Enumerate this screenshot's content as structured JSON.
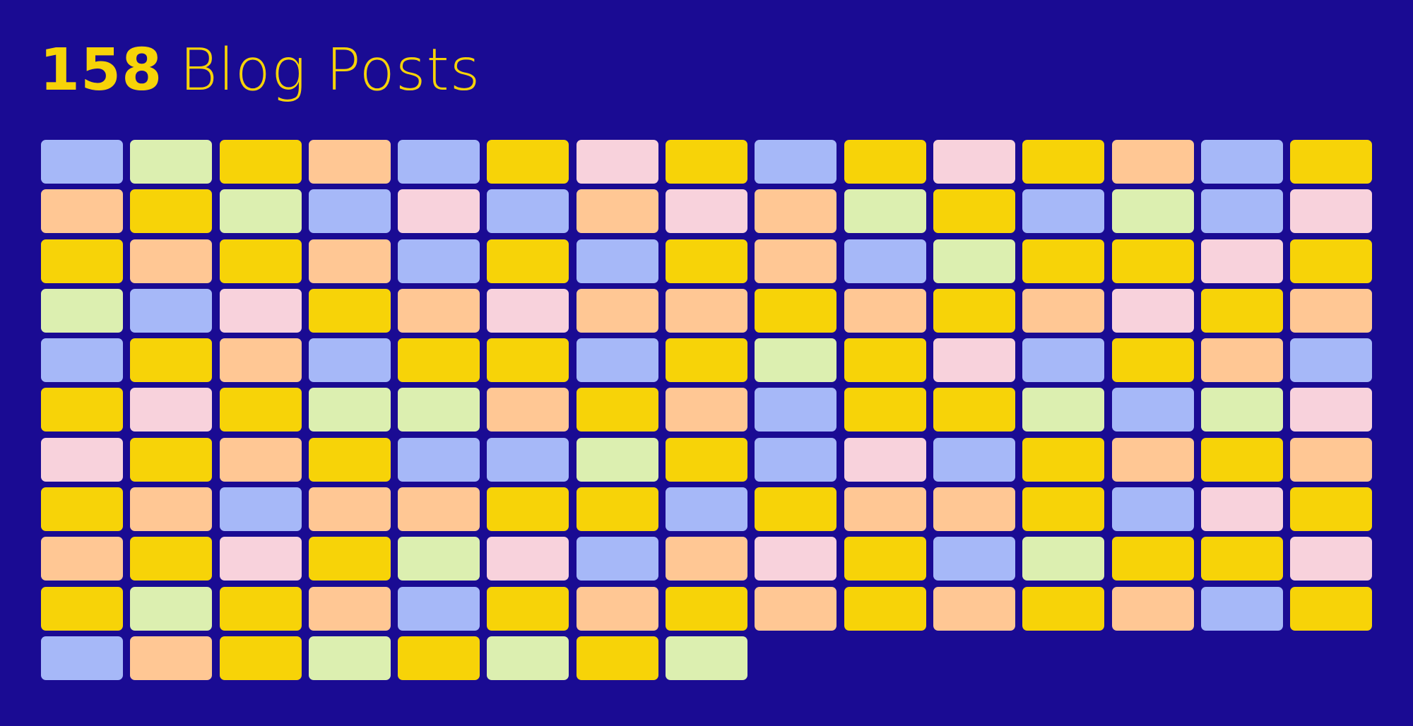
{
  "header": {
    "count": 158,
    "label": "Blog Posts"
  },
  "palette": {
    "blue": "#a6b8f8",
    "green": "#dcefb0",
    "yellow": "#f7d308",
    "orange": "#ffc794",
    "pink": "#f8d2dc"
  },
  "posts": [
    "blue",
    "green",
    "yellow",
    "orange",
    "blue",
    "yellow",
    "pink",
    "yellow",
    "blue",
    "yellow",
    "pink",
    "yellow",
    "orange",
    "blue",
    "yellow",
    "orange",
    "yellow",
    "green",
    "blue",
    "pink",
    "blue",
    "orange",
    "pink",
    "orange",
    "green",
    "yellow",
    "blue",
    "green",
    "blue",
    "pink",
    "yellow",
    "orange",
    "yellow",
    "orange",
    "blue",
    "yellow",
    "blue",
    "yellow",
    "orange",
    "blue",
    "green",
    "yellow",
    "yellow",
    "pink",
    "yellow",
    "green",
    "blue",
    "pink",
    "yellow",
    "orange",
    "pink",
    "orange",
    "orange",
    "yellow",
    "orange",
    "yellow",
    "orange",
    "pink",
    "yellow",
    "orange",
    "blue",
    "yellow",
    "orange",
    "blue",
    "yellow",
    "yellow",
    "blue",
    "yellow",
    "green",
    "yellow",
    "pink",
    "blue",
    "yellow",
    "orange",
    "blue",
    "yellow",
    "pink",
    "yellow",
    "green",
    "green",
    "orange",
    "yellow",
    "orange",
    "blue",
    "yellow",
    "yellow",
    "green",
    "blue",
    "green",
    "pink",
    "pink",
    "yellow",
    "orange",
    "yellow",
    "blue",
    "blue",
    "green",
    "yellow",
    "blue",
    "pink",
    "blue",
    "yellow",
    "orange",
    "yellow",
    "orange",
    "yellow",
    "orange",
    "blue",
    "orange",
    "orange",
    "yellow",
    "yellow",
    "blue",
    "yellow",
    "orange",
    "orange",
    "yellow",
    "blue",
    "pink",
    "yellow",
    "orange",
    "yellow",
    "pink",
    "yellow",
    "green",
    "pink",
    "blue",
    "orange",
    "pink",
    "yellow",
    "blue",
    "green",
    "yellow",
    "yellow",
    "pink",
    "yellow",
    "green",
    "yellow",
    "orange",
    "blue",
    "yellow",
    "orange",
    "yellow",
    "orange",
    "yellow",
    "orange",
    "yellow",
    "orange",
    "blue",
    "yellow",
    "blue",
    "orange",
    "yellow",
    "green",
    "yellow",
    "green",
    "yellow",
    "green"
  ]
}
